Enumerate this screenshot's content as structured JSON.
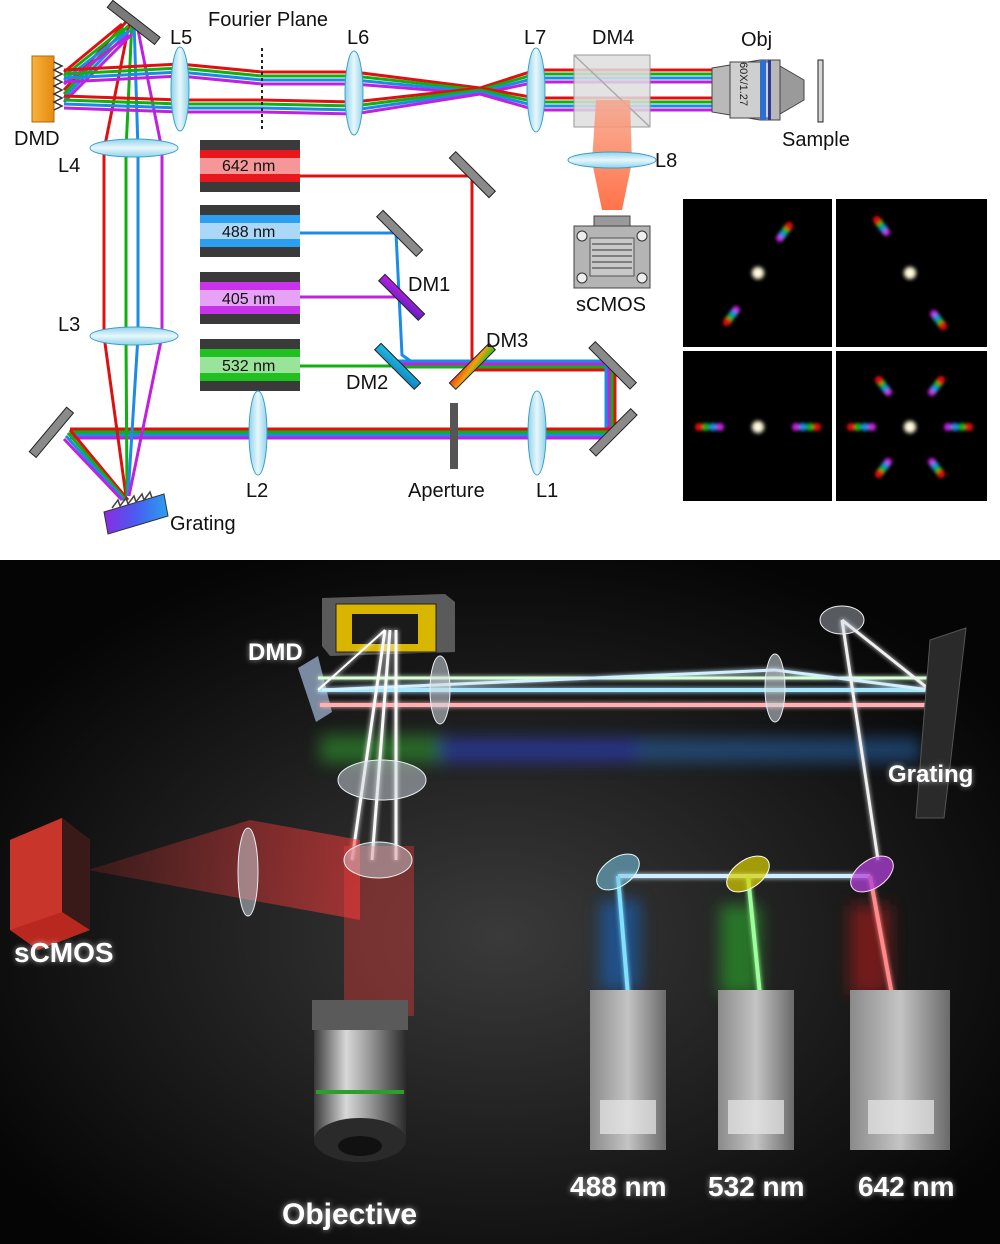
{
  "schematic": {
    "labels": {
      "dmd": "DMD",
      "l5": "L5",
      "fourier_plane": "Fourier Plane",
      "l6": "L6",
      "l7": "L7",
      "dm4": "DM4",
      "obj": "Obj",
      "objective_marking": "60X/1.27",
      "sample": "Sample",
      "l4": "L4",
      "l8": "L8",
      "dm1": "DM1",
      "dm2": "DM2",
      "dm3": "DM3",
      "l3": "L3",
      "l2": "L2",
      "l1": "L1",
      "aperture": "Aperture",
      "grating": "Grating",
      "scmos": "sCMOS"
    },
    "lasers": [
      {
        "label": "642 nm",
        "color": "#e8171c"
      },
      {
        "label": "488 nm",
        "color": "#2d9ff0"
      },
      {
        "label": "405 nm",
        "color": "#c832e8"
      },
      {
        "label": "532 nm",
        "color": "#20c020"
      }
    ],
    "beam_colors": {
      "red": "#e01010",
      "blue": "#1a8ce8",
      "violet": "#c020e0",
      "green": "#10b010"
    }
  },
  "render": {
    "labels": {
      "dmd": "DMD",
      "grating": "Grating",
      "scmos": "sCMOS",
      "objective": "Objective",
      "laser_488": "488 nm",
      "laser_532": "532 nm",
      "laser_642": "642 nm"
    }
  }
}
